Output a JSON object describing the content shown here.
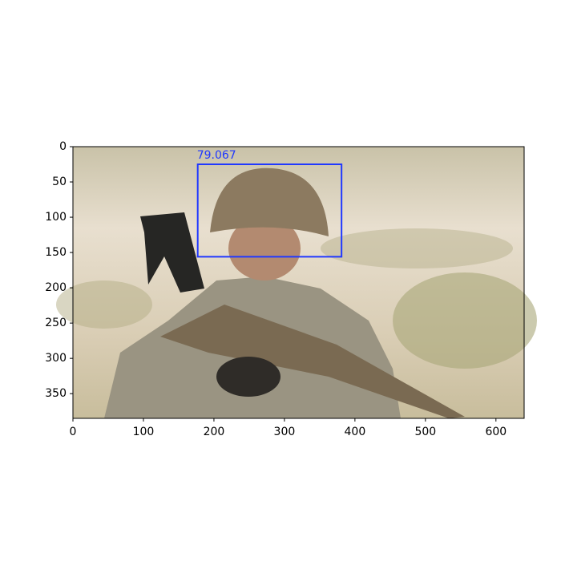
{
  "chart_data": {
    "type": "detection",
    "xlim": [
      0,
      640
    ],
    "ylim": [
      385,
      0
    ],
    "xticks": [
      0,
      100,
      200,
      300,
      400,
      500,
      600
    ],
    "yticks": [
      0,
      50,
      100,
      150,
      200,
      250,
      300,
      350
    ],
    "boxes": [
      {
        "x": [
          177,
          381
        ],
        "y": [
          25,
          156
        ],
        "score": 79.067,
        "color": "#2038ff"
      }
    ]
  }
}
